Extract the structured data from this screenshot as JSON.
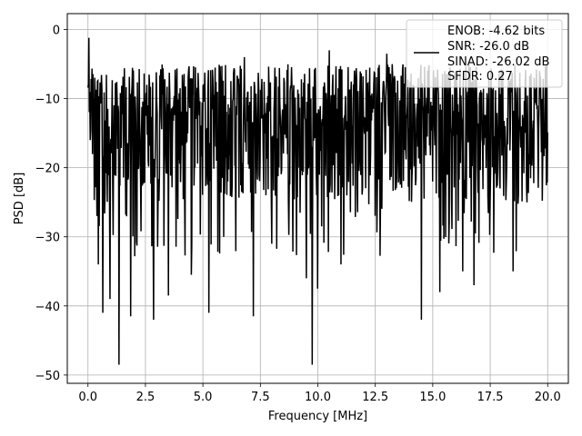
{
  "chart_data": {
    "type": "line",
    "xlabel": "Frequency [MHz]",
    "ylabel": "PSD [dB]",
    "xlim": [
      -0.9,
      20.9
    ],
    "ylim": [
      -51.2,
      2.3
    ],
    "x_ticks": [
      0,
      2.5,
      5,
      7.5,
      10,
      12.5,
      15,
      17.5,
      20
    ],
    "x_tick_labels": [
      "0.0",
      "2.5",
      "5.0",
      "7.5",
      "10.0",
      "12.5",
      "15.0",
      "17.5",
      "20.0"
    ],
    "y_ticks": [
      0,
      -10,
      -20,
      -30,
      -40,
      -50
    ],
    "y_tick_labels": [
      "0",
      "−10",
      "−20",
      "−30",
      "−40",
      "−50"
    ],
    "grid": true,
    "legend_position": "upper-right",
    "series": [
      {
        "name": "",
        "color": "#000000",
        "x_range": [
          0,
          20
        ],
        "n_points": 1024,
        "envelope": {
          "typical_max": -5,
          "typical_min": -25,
          "median": -13
        },
        "notable_points": [
          {
            "x": 0.03,
            "y": -1.2
          },
          {
            "x": 0.1,
            "y": -16
          },
          {
            "x": 0.4,
            "y": -27
          },
          {
            "x": 0.45,
            "y": -34
          },
          {
            "x": 0.65,
            "y": -41
          },
          {
            "x": 0.95,
            "y": -39
          },
          {
            "x": 1.35,
            "y": -48.5
          },
          {
            "x": 1.85,
            "y": -41.5
          },
          {
            "x": 2.85,
            "y": -42
          },
          {
            "x": 3.5,
            "y": -38.5
          },
          {
            "x": 4.5,
            "y": -35.5
          },
          {
            "x": 5.25,
            "y": -41
          },
          {
            "x": 7.2,
            "y": -41.5
          },
          {
            "x": 8.0,
            "y": -31
          },
          {
            "x": 9.5,
            "y": -36
          },
          {
            "x": 9.75,
            "y": -48.5
          },
          {
            "x": 10.0,
            "y": -37.5
          },
          {
            "x": 10.5,
            "y": -3
          },
          {
            "x": 11.0,
            "y": -34
          },
          {
            "x": 14.5,
            "y": -42
          },
          {
            "x": 15.3,
            "y": -38
          },
          {
            "x": 16.3,
            "y": -35
          },
          {
            "x": 16.8,
            "y": -37
          },
          {
            "x": 18.5,
            "y": -35
          },
          {
            "x": 6.8,
            "y": -4
          },
          {
            "x": 13.0,
            "y": -3.5
          }
        ]
      }
    ],
    "legend": {
      "lines": [
        "ENOB: -4.62 bits",
        "SNR: -26.0 dB",
        "SINAD: -26.02 dB",
        "SFDR: 0.27"
      ]
    }
  }
}
